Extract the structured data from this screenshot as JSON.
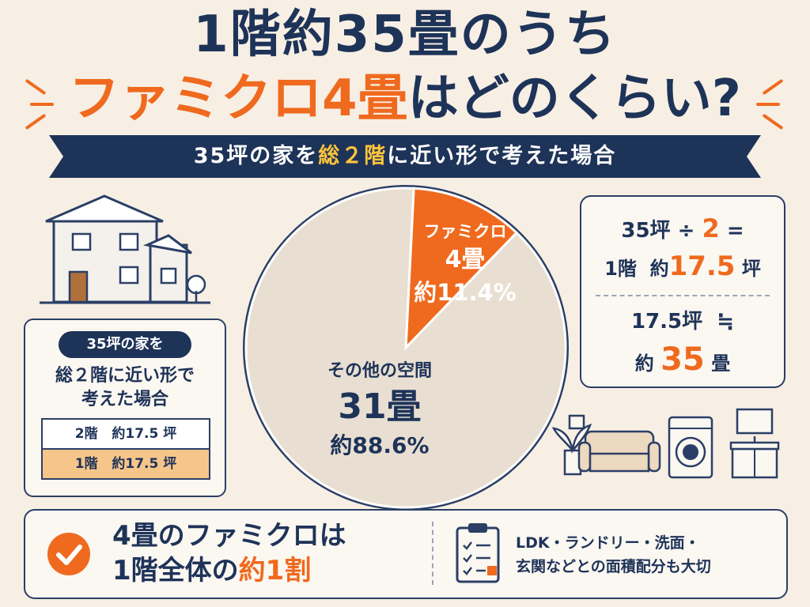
{
  "title": {
    "line1": "1階約35畳のうち",
    "line2_highlight": "ファミクロ4畳",
    "line2_rest": "はどのくらい?"
  },
  "banner": {
    "part1": "35坪の家を",
    "highlight": "総２階",
    "part2": "に近い形で考えた場合"
  },
  "left_panel": {
    "pill": "35坪の家を",
    "desc_line1": "総２階に近い形で",
    "desc_line2": "考えた場合",
    "floors": [
      {
        "floor": "2階",
        "area": "約17.5 坪"
      },
      {
        "floor": "1階",
        "area": "約17.5 坪"
      }
    ]
  },
  "chart_data": {
    "type": "pie",
    "slices": [
      {
        "name": "ファミクロ",
        "value_jo": 4,
        "percent": 11.4,
        "label_line2": "4畳",
        "label_line3": "約11.4%",
        "color": "#ef6a1e"
      },
      {
        "name": "その他の空間",
        "value_jo": 31,
        "percent": 88.6,
        "label_line2": "31畳",
        "label_line3": "約88.6%",
        "color": "#e8dfd2"
      }
    ]
  },
  "calc": {
    "line1_a": "35坪",
    "line1_op": "÷",
    "line1_num": "2",
    "line1_eq": "=",
    "line2_a": "1階",
    "line2_b": "約",
    "line2_num": "17.5",
    "line2_unit": "坪",
    "line3_a": "17.5坪",
    "line3_op": "≒",
    "line4_a": "約",
    "line4_num": "35",
    "line4_unit": "畳"
  },
  "bottom": {
    "main_line1": "4畳のファミクロは",
    "main_line2_a": "1階全体の",
    "main_line2_hl": "約1割",
    "note_line1": "LDK・ランドリー・洗面・",
    "note_line2": "玄関などとの面積配分も大切"
  },
  "colors": {
    "navy": "#1e3358",
    "orange": "#ef6a1e",
    "background": "#f7efe4",
    "highlight_yellow": "#ffc53d"
  },
  "icons": [
    "house-icon",
    "check-icon",
    "clipboard-icon",
    "plant-icon",
    "sofa-icon",
    "washing-machine-icon",
    "washbasin-icon"
  ]
}
